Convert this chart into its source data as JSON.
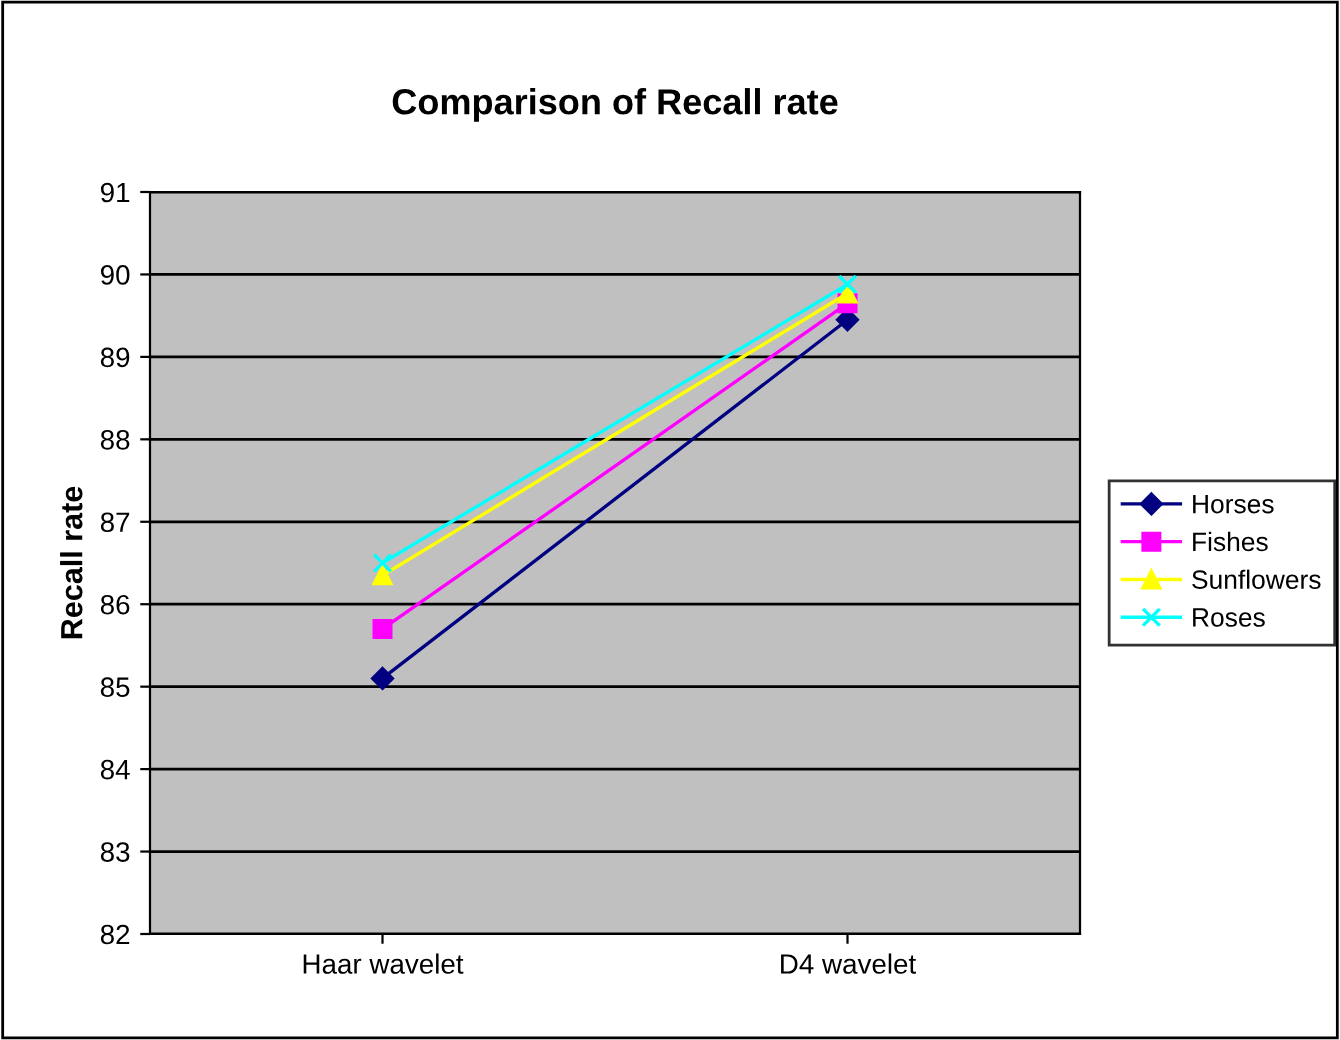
{
  "chart_data": {
    "type": "line",
    "title": "Comparison of Recall rate",
    "ylabel": "Recall rate",
    "categories": [
      "Haar wavelet",
      "D4 wavelet"
    ],
    "series": [
      {
        "name": "Horses",
        "color": "#000080",
        "marker": "diamond",
        "values": [
          85.1,
          89.45
        ]
      },
      {
        "name": "Fishes",
        "color": "#ff00ff",
        "marker": "square",
        "values": [
          85.7,
          89.65
        ]
      },
      {
        "name": "Sunflowers",
        "color": "#ffff00",
        "marker": "triangle",
        "values": [
          86.35,
          89.77
        ]
      },
      {
        "name": "Roses",
        "color": "#00ffff",
        "marker": "cross",
        "values": [
          86.5,
          89.88
        ]
      }
    ],
    "ylim": [
      82,
      91
    ],
    "yticks": [
      82,
      83,
      84,
      85,
      86,
      87,
      88,
      89,
      90,
      91
    ],
    "grid": "y",
    "legend": "right"
  }
}
